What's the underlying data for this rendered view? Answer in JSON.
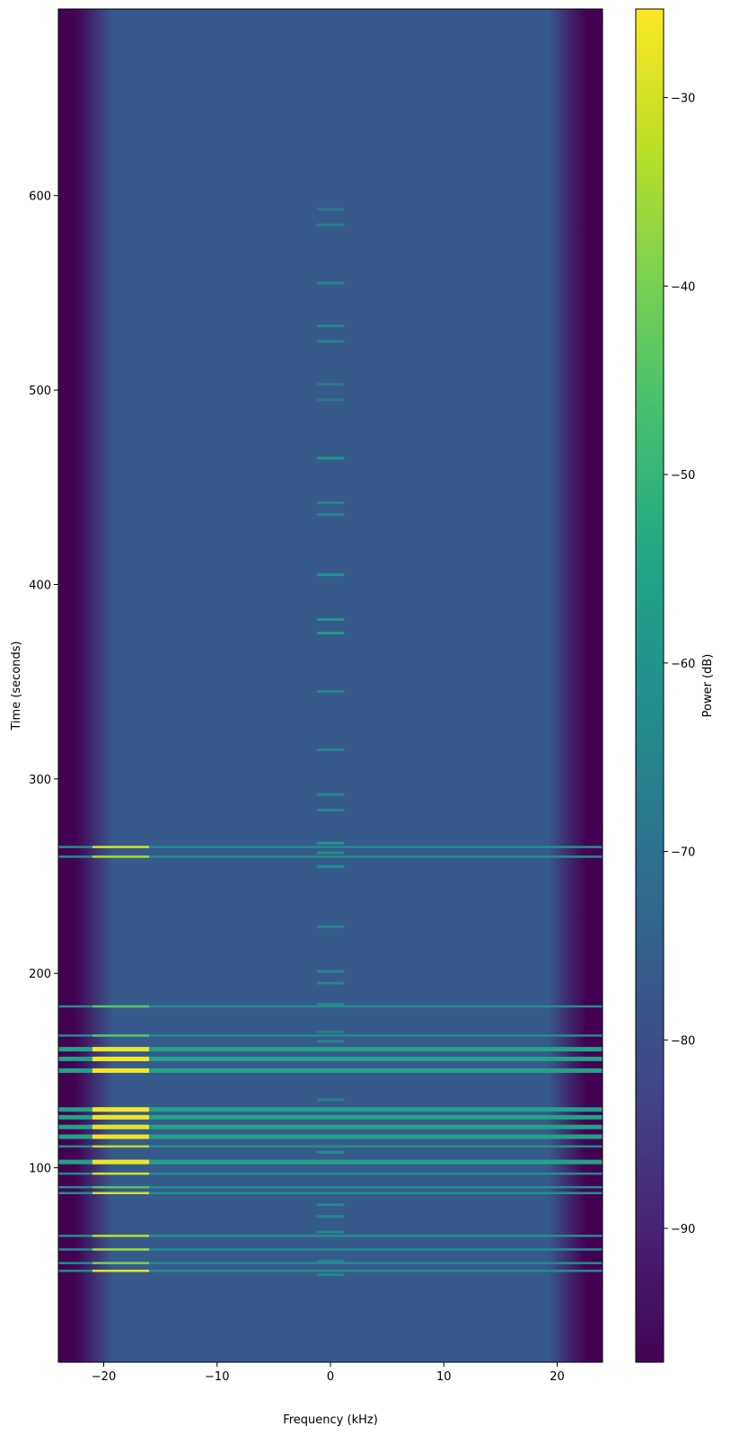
{
  "chart_data": {
    "type": "spectrogram",
    "xlabel": "Frequency (kHz)",
    "ylabel": "Time (seconds)",
    "colorbar_label": "Power (dB)",
    "xlim": [
      -24,
      24
    ],
    "xticks": [
      {
        "value": -20,
        "label": "−20"
      },
      {
        "value": -10,
        "label": "−10"
      },
      0,
      10,
      20
    ],
    "ylim": [
      0,
      696
    ],
    "yticks": [
      100,
      200,
      300,
      400,
      500,
      600
    ],
    "clim": [
      -97.1,
      -25.3
    ],
    "cticks": [
      {
        "value": -30,
        "label": "−30"
      },
      {
        "value": -40,
        "label": "−40"
      },
      {
        "value": -50,
        "label": "−50"
      },
      {
        "value": -60,
        "label": "−60"
      },
      {
        "value": -70,
        "label": "−70"
      },
      {
        "value": -80,
        "label": "−80"
      },
      {
        "value": -90,
        "label": "−90"
      }
    ],
    "colormap": [
      "#440154",
      "#482475",
      "#414487",
      "#355f8d",
      "#2a788e",
      "#21918c",
      "#22a884",
      "#44bf70",
      "#7ad151",
      "#bddf26",
      "#fde725"
    ],
    "noise_floor": -77,
    "edge_power": -97,
    "bursts": {
      "time": [
        47,
        51,
        58,
        65,
        87,
        90,
        97,
        103,
        111,
        116,
        121,
        126,
        130,
        150,
        156,
        161,
        168,
        183,
        260,
        265
      ],
      "power": [
        -62,
        -62,
        -62,
        -62,
        -62,
        -62,
        -62,
        -56,
        -62,
        -56,
        -56,
        -56,
        -56,
        -56,
        -56,
        -56,
        -62,
        -62,
        -62,
        -62
      ],
      "peak_power": [
        -28,
        -40,
        -35,
        -33,
        -30,
        -45,
        -30,
        -27,
        -33,
        -27,
        -28,
        -27,
        -26,
        -26,
        -26,
        -27,
        -45,
        -45,
        -35,
        -30
      ],
      "peak_freq": [
        -21,
        -16
      ]
    },
    "carrier": {
      "freq": [
        -1.2,
        1.2
      ],
      "time": [
        45,
        52,
        67,
        75,
        81,
        103,
        108,
        135,
        165,
        170,
        184,
        195,
        201,
        224,
        255,
        262,
        267,
        284,
        292,
        315,
        345,
        375,
        382,
        405,
        436,
        442,
        465,
        495,
        503,
        525,
        533,
        555,
        585,
        593
      ],
      "power": [
        -64,
        -66,
        -64,
        -64,
        -64,
        -60,
        -62,
        -66,
        -64,
        -66,
        -62,
        -64,
        -64,
        -64,
        -62,
        -62,
        -60,
        -64,
        -64,
        -64,
        -64,
        -58,
        -60,
        -60,
        -64,
        -64,
        -60,
        -68,
        -68,
        -66,
        -64,
        -64,
        -66,
        -68
      ]
    }
  }
}
